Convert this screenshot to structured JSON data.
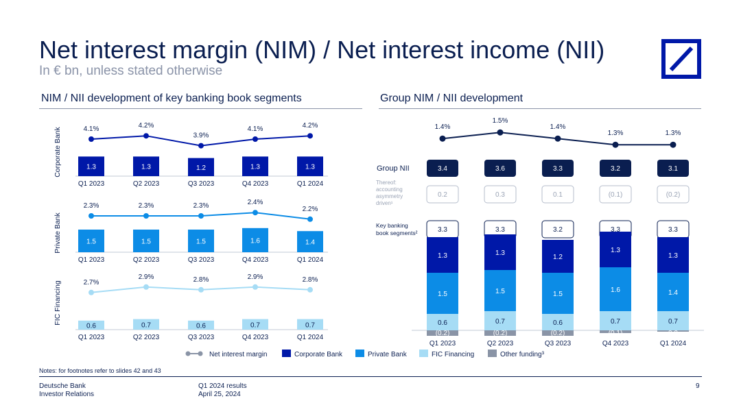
{
  "header": {
    "title": "Net interest margin (NIM) / Net interest income (NII)",
    "subtitle": "In € bn, unless stated otherwise"
  },
  "left_panel": {
    "title": "NIM / NII development of key banking book segments"
  },
  "right_panel": {
    "title": "Group NIM / NII development"
  },
  "notes": "Notes: for footnotes refer to slides 42 and 43",
  "footer": {
    "company": "Deutsche Bank",
    "department": "Investor Relations",
    "report": "Q1 2024 results",
    "date": "April 25, 2024",
    "page": "9"
  },
  "colors": {
    "navy": "#0a1e50",
    "corporate": "#0018a8",
    "private": "#0c8ce6",
    "fic": "#a6dcf5",
    "other_funding": "#8a94a6",
    "nim_line_corporate": "#0018a8",
    "nim_line_private": "#0c8ce6",
    "nim_line_fic": "#a6dcf5",
    "nim_line_group": "#0a1e50"
  },
  "chart_data": [
    {
      "type": "bar",
      "segment": "Corporate Bank",
      "categories": [
        "Q1 2023",
        "Q2 2023",
        "Q3 2023",
        "Q4 2023",
        "Q1 2024"
      ],
      "series": [
        {
          "name": "Net interest margin",
          "kind": "line",
          "values": [
            4.1,
            4.2,
            3.9,
            4.1,
            4.2
          ],
          "labels": [
            "4.1%",
            "4.2%",
            "3.9%",
            "4.1%",
            "4.2%"
          ]
        },
        {
          "name": "Corporate Bank",
          "kind": "bar",
          "values": [
            1.3,
            1.3,
            1.2,
            1.3,
            1.3
          ],
          "labels": [
            "1.3",
            "1.3",
            "1.2",
            "1.3",
            "1.3"
          ]
        }
      ]
    },
    {
      "type": "bar",
      "segment": "Private Bank",
      "categories": [
        "Q1 2023",
        "Q2 2023",
        "Q3 2023",
        "Q4 2023",
        "Q1 2024"
      ],
      "series": [
        {
          "name": "Net interest margin",
          "kind": "line",
          "values": [
            2.3,
            2.3,
            2.3,
            2.4,
            2.2
          ],
          "labels": [
            "2.3%",
            "2.3%",
            "2.3%",
            "2.4%",
            "2.2%"
          ]
        },
        {
          "name": "Private Bank",
          "kind": "bar",
          "values": [
            1.5,
            1.5,
            1.5,
            1.6,
            1.4
          ],
          "labels": [
            "1.5",
            "1.5",
            "1.5",
            "1.6",
            "1.4"
          ]
        }
      ]
    },
    {
      "type": "bar",
      "segment": "FIC Financing",
      "categories": [
        "Q1 2023",
        "Q2 2023",
        "Q3 2023",
        "Q4 2023",
        "Q1 2024"
      ],
      "series": [
        {
          "name": "Net interest margin",
          "kind": "line",
          "values": [
            2.7,
            2.9,
            2.8,
            2.9,
            2.8
          ],
          "labels": [
            "2.7%",
            "2.9%",
            "2.8%",
            "2.9%",
            "2.8%"
          ]
        },
        {
          "name": "FIC Financing",
          "kind": "bar",
          "values": [
            0.6,
            0.7,
            0.6,
            0.7,
            0.7
          ],
          "labels": [
            "0.6",
            "0.7",
            "0.6",
            "0.7",
            "0.7"
          ]
        }
      ]
    },
    {
      "type": "bar",
      "segment": "Group",
      "stacked": true,
      "categories": [
        "Q1 2023",
        "Q2 2023",
        "Q3 2023",
        "Q4 2023",
        "Q1 2024"
      ],
      "nim": {
        "name": "Net interest margin",
        "values": [
          1.4,
          1.5,
          1.4,
          1.3,
          1.3
        ],
        "labels": [
          "1.4%",
          "1.5%",
          "1.4%",
          "1.3%",
          "1.3%"
        ]
      },
      "rows": [
        {
          "label": "Group NII",
          "values": [
            3.4,
            3.6,
            3.3,
            3.2,
            3.1
          ],
          "labels": [
            "3.4",
            "3.6",
            "3.3",
            "3.2",
            "3.1"
          ]
        },
        {
          "label": "Thereof: accounting asymmetry driven¹",
          "label_lines": [
            "Thereof:",
            "accounting",
            "asymmetry",
            "driven¹"
          ],
          "values": [
            0.2,
            0.3,
            0.1,
            -0.1,
            -0.2
          ],
          "labels": [
            "0.2",
            "0.3",
            "0.1",
            "(0.1)",
            "(0.2)"
          ]
        },
        {
          "label": "Key banking book segments²",
          "label_lines": [
            "Key banking",
            "book segments²"
          ],
          "values": [
            3.3,
            3.3,
            3.2,
            3.3,
            3.3
          ],
          "labels": [
            "3.3",
            "3.3",
            "3.2",
            "3.3",
            "3.3"
          ]
        }
      ],
      "series": [
        {
          "name": "Corporate Bank",
          "values": [
            1.3,
            1.3,
            1.2,
            1.3,
            1.3
          ],
          "labels": [
            "1.3",
            "1.3",
            "1.2",
            "1.3",
            "1.3"
          ]
        },
        {
          "name": "Private Bank",
          "values": [
            1.5,
            1.5,
            1.5,
            1.6,
            1.4
          ],
          "labels": [
            "1.5",
            "1.5",
            "1.5",
            "1.6",
            "1.4"
          ]
        },
        {
          "name": "FIC Financing",
          "values": [
            0.6,
            0.7,
            0.6,
            0.7,
            0.7
          ],
          "labels": [
            "0.6",
            "0.7",
            "0.6",
            "0.7",
            "0.7"
          ]
        },
        {
          "name": "Other funding³",
          "values": [
            -0.2,
            -0.2,
            -0.2,
            -0.1,
            0.0
          ],
          "labels": [
            "(0.2)",
            "(0.2)",
            "(0.2)",
            "(0.1)",
            "0.0"
          ]
        }
      ]
    }
  ],
  "legend": {
    "items": [
      {
        "label": "Net interest margin",
        "kind": "line",
        "color": "#8a94a6"
      },
      {
        "label": "Corporate Bank",
        "kind": "box",
        "color": "#0018a8"
      },
      {
        "label": "Private Bank",
        "kind": "box",
        "color": "#0c8ce6"
      },
      {
        "label": "FIC Financing",
        "kind": "box",
        "color": "#a6dcf5"
      },
      {
        "label": "Other funding³",
        "kind": "box",
        "color": "#8a94a6"
      }
    ]
  }
}
